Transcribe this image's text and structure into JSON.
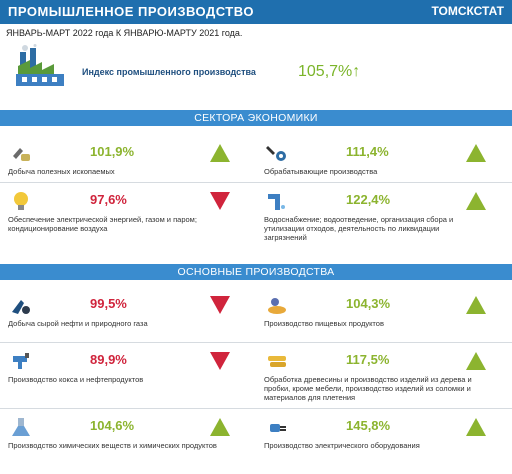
{
  "header": {
    "title": "ПРОМЫШЛЕННОЕ  ПРОИЗВОДСТВО",
    "brand": "ТОМСКСТАТ"
  },
  "subtitle": "ЯНВАРЬ-МАРТ 2022 года К ЯНВАРЮ-МАРТУ 2021 года.",
  "index": {
    "label": "Индекс промышленного производства",
    "value": "105,7%↑"
  },
  "sectors": {
    "title": "СЕКТОРА ЭКОНОМИКИ",
    "items": [
      {
        "value": "101,9%",
        "label": "Добыча полезных ископаемых",
        "trend": "up",
        "icon": "mining-icon"
      },
      {
        "value": "111,4%",
        "label": "Обрабатывающие производства",
        "trend": "up",
        "icon": "tools-icon"
      },
      {
        "value": "97,6%",
        "label": "Обеспечение электрической энергией, газом и паром; кондиционирование воздуха",
        "trend": "down",
        "icon": "lightbulb-icon"
      },
      {
        "value": "122,4%",
        "label": "Водоснабжение; водоотведение, организация сбора и утилизации отходов, деятельность по ликвидации загрязнений",
        "trend": "up",
        "icon": "pipe-icon"
      }
    ]
  },
  "production": {
    "title": "ОСНОВНЫЕ ПРОИЗВОДСТВА",
    "items": [
      {
        "value": "99,5%",
        "label": "Добыча сырой нефти и природного газа",
        "trend": "down",
        "icon": "oil-icon"
      },
      {
        "value": "104,3%",
        "label": "Производство  пищевых  продуктов",
        "trend": "up",
        "icon": "food-icon"
      },
      {
        "value": "89,9%",
        "label": "Производство кокса и нефтепродуктов",
        "trend": "down",
        "icon": "pump-icon"
      },
      {
        "value": "117,5%",
        "label": "Обработка древесины и производство изделий из дерева и пробки, кроме мебели, производство изделий из соломки и материалов для плетения",
        "trend": "up",
        "icon": "wood-icon"
      },
      {
        "value": "104,6%",
        "label": "Производство химических веществ и химических продуктов",
        "trend": "up",
        "icon": "flask-icon"
      },
      {
        "value": "145,8%",
        "label": "Производство электрического оборудования",
        "trend": "up",
        "icon": "plug-icon"
      }
    ]
  },
  "colors": {
    "header": "#1f6fae",
    "band": "#3a8ccf",
    "up": "#8cb42f",
    "down": "#d0243c"
  }
}
